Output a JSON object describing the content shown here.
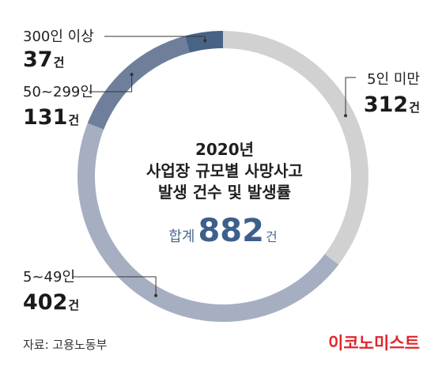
{
  "chart_data": {
    "type": "pie",
    "title_lines": [
      "2020년",
      "사업장 규모별 사망사고",
      "발생 건수 및 발생률"
    ],
    "total": {
      "prefix": "합계",
      "value": "882",
      "unit": "건"
    },
    "unit": "건",
    "slices": [
      {
        "label": "5인 미만",
        "value": 312,
        "color": "#d1d1d1"
      },
      {
        "label": "5~49인",
        "value": 402,
        "color": "#a6afc2"
      },
      {
        "label": "50~299인",
        "value": 131,
        "color": "#6f7f9b"
      },
      {
        "label": "300인 이상",
        "value": 37,
        "color": "#476487"
      }
    ]
  },
  "footer": {
    "source": "자료: 고용노동부",
    "brand": "이코노미스트"
  }
}
